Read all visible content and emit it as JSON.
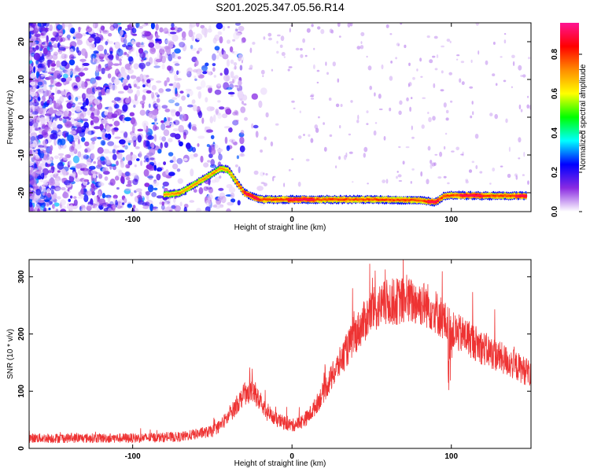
{
  "title": "S201.2025.347.05.56.R14",
  "chart_data": [
    {
      "type": "heatmap",
      "xlabel": "Height of straight line (km)",
      "ylabel": "Frequency (Hz)",
      "xlim": [
        -165,
        150
      ],
      "ylim": [
        -25,
        25
      ],
      "xticks": [
        -100,
        0,
        100
      ],
      "yticks": [
        -20,
        -10,
        0,
        10,
        20
      ],
      "colorbar": {
        "label": "Normalized spectral amplitude",
        "range": [
          0,
          0.96
        ],
        "ticks": [
          "0.0",
          "0.2",
          "0.4",
          "0.6",
          "0.8"
        ],
        "tick_values": [
          0,
          0.2,
          0.4,
          0.6,
          0.8
        ],
        "colors": [
          "#ffffff",
          "#8a2be2",
          "#0000ff",
          "#00ffff",
          "#00ff00",
          "#ffff00",
          "#ff8c00",
          "#ff0000",
          "#ff1493"
        ]
      },
      "ridge": {
        "description_points_x": [
          -78,
          -70,
          -60,
          -50,
          -45,
          -40,
          -35,
          -30,
          -25,
          -20,
          0,
          20,
          50,
          80,
          90,
          95,
          100,
          120,
          148
        ],
        "description_points_y": [
          -20.5,
          -20,
          -17.5,
          -15,
          -13.5,
          -14,
          -17,
          -20,
          -21,
          -21.8,
          -21.8,
          -21.8,
          -21.8,
          -22,
          -22.5,
          -21,
          -20.7,
          -20.8,
          -20.8
        ]
      }
    },
    {
      "type": "line",
      "xlabel": "Height of straight line (km)",
      "ylabel": "SNR (10 * v/v)",
      "xlim": [
        -165,
        150
      ],
      "ylim": [
        0,
        330
      ],
      "xticks": [
        -100,
        0,
        100
      ],
      "yticks": [
        0,
        100,
        200,
        300
      ],
      "color": "#ee3333",
      "envelope_x": [
        -165,
        -140,
        -100,
        -70,
        -60,
        -50,
        -45,
        -40,
        -35,
        -30,
        -25,
        -20,
        -15,
        -10,
        -5,
        0,
        5,
        10,
        15,
        20,
        25,
        30,
        35,
        40,
        45,
        50,
        60,
        70,
        80,
        85,
        90,
        95,
        100,
        105,
        110,
        120,
        130,
        140,
        150
      ],
      "envelope_y": [
        18,
        18,
        18,
        20,
        25,
        30,
        40,
        55,
        75,
        95,
        100,
        80,
        60,
        50,
        45,
        40,
        45,
        55,
        75,
        100,
        125,
        150,
        175,
        200,
        220,
        240,
        255,
        258,
        255,
        250,
        240,
        225,
        205,
        200,
        195,
        175,
        160,
        145,
        130
      ]
    }
  ]
}
